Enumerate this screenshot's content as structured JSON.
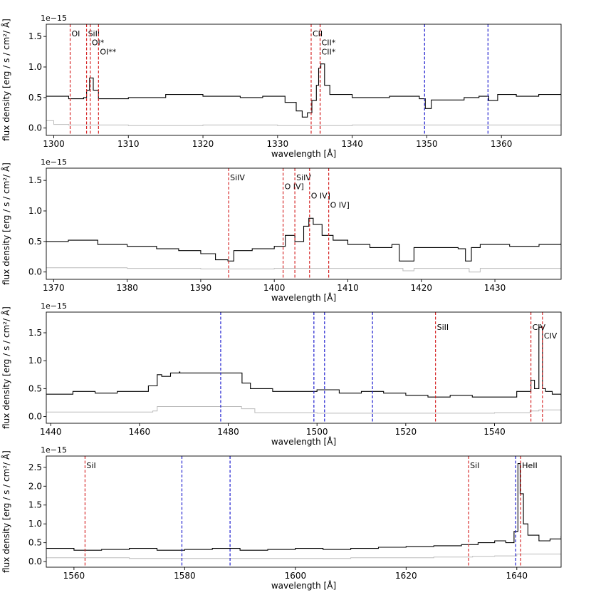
{
  "chart_data": [
    {
      "type": "line",
      "xlabel": "wavelength [Å]",
      "ylabel": "flux density [erg / s / cm²/ Å]",
      "offset_text": "1e−15",
      "xlim": [
        1299,
        1368
      ],
      "ylim": [
        -0.12,
        1.7
      ],
      "xticks": [
        1300,
        1310,
        1320,
        1330,
        1340,
        1350,
        1360
      ],
      "yticks": [
        0.0,
        0.5,
        1.0,
        1.5
      ],
      "ytick_labels": [
        "0.0",
        "0.5",
        "1.0",
        "1.5"
      ],
      "series": [
        {
          "role": "flux",
          "color": "#000000",
          "x": [
            1299,
            1302,
            1304,
            1304.4,
            1304.8,
            1305.3,
            1306,
            1310,
            1315,
            1320,
            1325,
            1328,
            1331,
            1332.5,
            1333.3,
            1334,
            1334.6,
            1335.2,
            1335.5,
            1335.8,
            1336.3,
            1337,
            1340,
            1345,
            1349,
            1349.8,
            1350.6,
            1355,
            1357,
            1358.3,
            1359.5,
            1362,
            1365,
            1368
          ],
          "y": [
            0.52,
            0.48,
            0.5,
            0.62,
            0.82,
            0.62,
            0.48,
            0.5,
            0.55,
            0.52,
            0.5,
            0.52,
            0.42,
            0.28,
            0.18,
            0.25,
            0.45,
            0.7,
            0.98,
            1.05,
            0.7,
            0.55,
            0.5,
            0.52,
            0.48,
            0.32,
            0.46,
            0.5,
            0.52,
            0.45,
            0.55,
            0.52,
            0.55,
            0.58
          ]
        },
        {
          "role": "error",
          "color": "#bbbbbb",
          "x": [
            1299,
            1300,
            1302,
            1310,
            1320,
            1330,
            1340,
            1350,
            1360,
            1368
          ],
          "y": [
            0.12,
            0.06,
            0.05,
            0.04,
            0.05,
            0.04,
            0.05,
            0.05,
            0.05,
            0.06
          ]
        }
      ],
      "lines": [
        {
          "x": 1302.2,
          "color": "#d62728",
          "label": "OI",
          "label_y": 1.55
        },
        {
          "x": 1304.4,
          "color": "#d62728",
          "label": "SiII",
          "label_y": 1.55
        },
        {
          "x": 1304.9,
          "color": "#d62728",
          "label": "OI*",
          "label_y": 1.4
        },
        {
          "x": 1306.0,
          "color": "#d62728",
          "label": "OI**",
          "label_y": 1.25
        },
        {
          "x": 1334.5,
          "color": "#d62728",
          "label": "CII",
          "label_y": 1.55
        },
        {
          "x": 1335.7,
          "color": "#d62728",
          "label": "CII*",
          "label_y": 1.4
        },
        {
          "x": 1335.7,
          "color": "#d62728",
          "label": "CII*",
          "label_y": 1.25
        },
        {
          "x": 1349.7,
          "color": "#1f1fcf",
          "label": ""
        },
        {
          "x": 1358.2,
          "color": "#1f1fcf",
          "label": ""
        }
      ]
    },
    {
      "type": "line",
      "xlabel": "wavelength [Å]",
      "ylabel": "flux density [erg / s / cm²/ Å]",
      "offset_text": "1e−15",
      "xlim": [
        1369,
        1439
      ],
      "ylim": [
        -0.12,
        1.7
      ],
      "xticks": [
        1370,
        1380,
        1390,
        1400,
        1410,
        1420,
        1430
      ],
      "yticks": [
        0.0,
        0.5,
        1.0,
        1.5
      ],
      "ytick_labels": [
        "0.0",
        "0.5",
        "1.0",
        "1.5"
      ],
      "series": [
        {
          "role": "flux",
          "color": "#000000",
          "x": [
            1369,
            1372,
            1376,
            1380,
            1384,
            1387,
            1390,
            1392,
            1393.7,
            1394.5,
            1397,
            1400,
            1401.5,
            1402.8,
            1404,
            1404.7,
            1405.3,
            1406.5,
            1408,
            1410,
            1413,
            1416,
            1417,
            1419,
            1422,
            1425,
            1426,
            1426.8,
            1428,
            1432,
            1436,
            1439
          ],
          "y": [
            0.5,
            0.52,
            0.45,
            0.42,
            0.38,
            0.35,
            0.3,
            0.2,
            0.18,
            0.35,
            0.38,
            0.42,
            0.6,
            0.5,
            0.75,
            0.88,
            0.78,
            0.6,
            0.52,
            0.45,
            0.4,
            0.45,
            0.18,
            0.4,
            0.4,
            0.38,
            0.18,
            0.4,
            0.45,
            0.42,
            0.45,
            0.48
          ]
        },
        {
          "role": "error",
          "color": "#bbbbbb",
          "x": [
            1369,
            1380,
            1390,
            1400,
            1410,
            1416,
            1417.5,
            1419,
            1425,
            1426.5,
            1428,
            1439
          ],
          "y": [
            0.07,
            0.06,
            0.05,
            0.06,
            0.06,
            0.06,
            0.02,
            0.06,
            0.06,
            0.0,
            0.06,
            0.07
          ]
        }
      ],
      "lines": [
        {
          "x": 1393.8,
          "color": "#d62728",
          "label": "SiIV",
          "label_y": 1.55
        },
        {
          "x": 1401.2,
          "color": "#d62728",
          "label": "O IV]",
          "label_y": 1.4
        },
        {
          "x": 1402.8,
          "color": "#d62728",
          "label": "SiIV",
          "label_y": 1.55
        },
        {
          "x": 1404.8,
          "color": "#d62728",
          "label": "O IV]",
          "label_y": 1.25
        },
        {
          "x": 1407.4,
          "color": "#d62728",
          "label": "O IV]",
          "label_y": 1.1
        }
      ]
    },
    {
      "type": "line",
      "xlabel": "wavelength [Å]",
      "ylabel": "flux density [erg / s / cm²/ Å]",
      "offset_text": "1e−15",
      "xlim": [
        1439,
        1555
      ],
      "ylim": [
        -0.12,
        1.87
      ],
      "xticks": [
        1440,
        1460,
        1480,
        1500,
        1520,
        1540
      ],
      "yticks": [
        0.0,
        0.5,
        1.0,
        1.5
      ],
      "ytick_labels": [
        "0.0",
        "0.5",
        "1.0",
        "1.5"
      ],
      "series": [
        {
          "role": "flux",
          "color": "#000000",
          "x": [
            1439,
            1445,
            1450,
            1455,
            1460,
            1462,
            1464,
            1465,
            1467,
            1469,
            1469.1,
            1483,
            1483.1,
            1485,
            1490,
            1495,
            1500,
            1505,
            1510,
            1515,
            1520,
            1525,
            1530,
            1535,
            1540,
            1545,
            1547,
            1548.2,
            1549,
            1550,
            1550.8,
            1551.5,
            1553,
            1555
          ],
          "y": [
            0.4,
            0.45,
            0.42,
            0.45,
            0.45,
            0.55,
            0.75,
            0.72,
            0.78,
            0.8,
            0.78,
            0.78,
            0.6,
            0.5,
            0.45,
            0.45,
            0.48,
            0.42,
            0.45,
            0.42,
            0.38,
            0.35,
            0.38,
            0.35,
            0.35,
            0.45,
            0.45,
            0.65,
            0.5,
            1.6,
            0.5,
            0.45,
            0.4,
            0.38
          ]
        },
        {
          "role": "error",
          "color": "#bbbbbb",
          "x": [
            1439,
            1450,
            1460,
            1463,
            1464,
            1480,
            1483,
            1486,
            1500,
            1520,
            1540,
            1548,
            1550,
            1555
          ],
          "y": [
            0.08,
            0.08,
            0.08,
            0.1,
            0.18,
            0.18,
            0.14,
            0.07,
            0.06,
            0.06,
            0.07,
            0.1,
            0.12,
            0.1
          ]
        }
      ],
      "lines": [
        {
          "x": 1478.3,
          "color": "#1f1fcf",
          "label": ""
        },
        {
          "x": 1499.3,
          "color": "#1f1fcf",
          "label": ""
        },
        {
          "x": 1501.7,
          "color": "#1f1fcf",
          "label": ""
        },
        {
          "x": 1512.5,
          "color": "#1f1fcf",
          "label": ""
        },
        {
          "x": 1526.7,
          "color": "#d62728",
          "label": "SiII",
          "label_y": 1.6
        },
        {
          "x": 1548.2,
          "color": "#d62728",
          "label": "CIV",
          "label_y": 1.6
        },
        {
          "x": 1550.8,
          "color": "#d62728",
          "label": "CIV",
          "label_y": 1.45
        }
      ]
    },
    {
      "type": "line",
      "xlabel": "wavelength [Å]",
      "ylabel": "flux density [erg / s / cm²/ Å]",
      "offset_text": "1e−15",
      "xlim": [
        1555,
        1648
      ],
      "ylim": [
        -0.15,
        2.8
      ],
      "xticks": [
        1560,
        1580,
        1600,
        1620,
        1640
      ],
      "yticks": [
        0.0,
        0.5,
        1.0,
        1.5,
        2.0,
        2.5
      ],
      "ytick_labels": [
        "0.0",
        "0.5",
        "1.0",
        "1.5",
        "2.0",
        "2.5"
      ],
      "series": [
        {
          "role": "flux",
          "color": "#000000",
          "x": [
            1555,
            1560,
            1565,
            1570,
            1575,
            1580,
            1585,
            1590,
            1595,
            1600,
            1605,
            1610,
            1615,
            1620,
            1625,
            1630,
            1633,
            1636,
            1638,
            1639.5,
            1640.2,
            1640.6,
            1641.2,
            1642,
            1644,
            1646,
            1648
          ],
          "y": [
            0.35,
            0.3,
            0.32,
            0.35,
            0.3,
            0.32,
            0.35,
            0.3,
            0.32,
            0.35,
            0.32,
            0.35,
            0.38,
            0.4,
            0.42,
            0.45,
            0.5,
            0.55,
            0.5,
            0.8,
            2.6,
            1.8,
            1.0,
            0.7,
            0.55,
            0.6,
            0.68
          ]
        },
        {
          "role": "error",
          "color": "#bbbbbb",
          "x": [
            1555,
            1570,
            1590,
            1610,
            1625,
            1632,
            1636,
            1640,
            1642,
            1648
          ],
          "y": [
            0.1,
            0.08,
            0.08,
            0.1,
            0.12,
            0.14,
            0.15,
            0.2,
            0.2,
            0.2
          ]
        }
      ],
      "lines": [
        {
          "x": 1562.0,
          "color": "#d62728",
          "label": "SiI",
          "label_y": 2.55
        },
        {
          "x": 1579.5,
          "color": "#1f1fcf",
          "label": ""
        },
        {
          "x": 1588.2,
          "color": "#1f1fcf",
          "label": ""
        },
        {
          "x": 1631.3,
          "color": "#d62728",
          "label": "SiI",
          "label_y": 2.55
        },
        {
          "x": 1639.8,
          "color": "#1f1fcf",
          "label": ""
        },
        {
          "x": 1640.7,
          "color": "#d62728",
          "label": "HeII",
          "label_y": 2.55
        }
      ]
    }
  ]
}
